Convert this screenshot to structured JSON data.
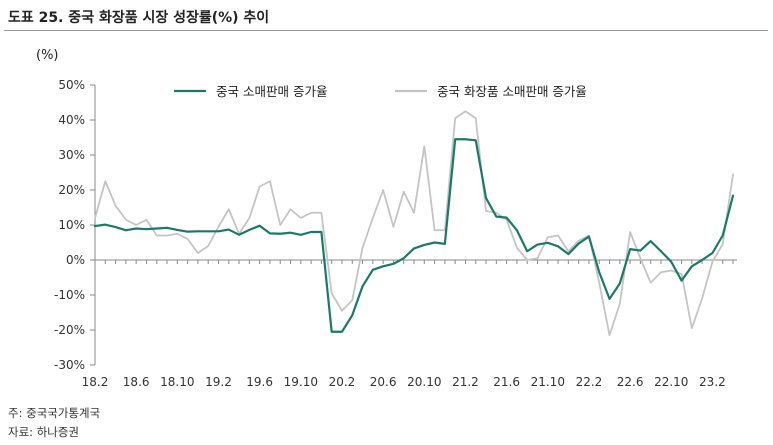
{
  "title": "도표 25. 중국 화장품 시장 성장률(%) 추이",
  "chart_data": {
    "type": "line",
    "y_unit": "(%)",
    "ylim": [
      -30,
      50
    ],
    "y_ticks": [
      "50%",
      "40%",
      "30%",
      "20%",
      "10%",
      "0%",
      "-10%",
      "-20%",
      "-30%"
    ],
    "y_tick_values": [
      50,
      40,
      30,
      20,
      10,
      0,
      -10,
      -20,
      -30
    ],
    "x_tick_labels": [
      "18.2",
      "18.6",
      "18.10",
      "19.2",
      "19.6",
      "19.10",
      "20.2",
      "20.6",
      "20.10",
      "21.2",
      "21.6",
      "21.10",
      "22.2",
      "22.6",
      "22.10",
      "23.2"
    ],
    "x": [
      "18.2",
      "18.3",
      "18.4",
      "18.5",
      "18.6",
      "18.7",
      "18.8",
      "18.9",
      "18.10",
      "18.11",
      "18.12",
      "19.1",
      "19.2",
      "19.3",
      "19.4",
      "19.5",
      "19.6",
      "19.7",
      "19.8",
      "19.9",
      "19.10",
      "19.11",
      "19.12",
      "20.1",
      "20.2",
      "20.3",
      "20.4",
      "20.5",
      "20.6",
      "20.7",
      "20.8",
      "20.9",
      "20.10",
      "20.11",
      "20.12",
      "21.1",
      "21.2",
      "21.3",
      "21.4",
      "21.5",
      "21.6",
      "21.7",
      "21.8",
      "21.9",
      "21.10",
      "21.11",
      "21.12",
      "22.1",
      "22.2",
      "22.3",
      "22.4",
      "22.5",
      "22.6",
      "22.7",
      "22.8",
      "22.9",
      "22.10",
      "22.11",
      "22.12",
      "23.1",
      "23.2",
      "23.3",
      "23.4"
    ],
    "legend_position": "top",
    "grid": false,
    "series": [
      {
        "name": "중국 소매판매 증가율",
        "color": "#1b7a66",
        "values": [
          9.7,
          10.1,
          9.4,
          8.5,
          9.0,
          8.8,
          9.0,
          9.2,
          8.6,
          8.1,
          8.2,
          8.2,
          8.2,
          8.7,
          7.2,
          8.6,
          9.8,
          7.6,
          7.5,
          7.8,
          7.2,
          8.0,
          8.0,
          -20.5,
          -20.5,
          -15.8,
          -7.5,
          -2.8,
          -1.8,
          -1.1,
          0.5,
          3.3,
          4.3,
          5.0,
          4.6,
          34.5,
          34.5,
          34.2,
          17.7,
          12.4,
          12.1,
          8.5,
          2.5,
          4.4,
          4.9,
          3.9,
          1.7,
          4.7,
          6.7,
          -3.5,
          -11.1,
          -6.7,
          3.1,
          2.7,
          5.4,
          2.5,
          -0.5,
          -5.9,
          -1.8,
          0.0,
          2.0,
          7.0,
          18.4
        ]
      },
      {
        "name": "중국 화장품 소매판매 증가율",
        "color": "#c4c4c4",
        "values": [
          12.0,
          22.5,
          15.5,
          11.5,
          10.0,
          11.5,
          7.0,
          7.0,
          7.5,
          6.0,
          2.0,
          4.0,
          9.5,
          14.5,
          7.5,
          12.0,
          21.0,
          22.5,
          10.0,
          14.5,
          12.0,
          13.5,
          13.5,
          -9.5,
          -14.5,
          -11.5,
          3.5,
          12.0,
          20.0,
          9.5,
          19.5,
          13.5,
          32.5,
          8.5,
          8.5,
          40.5,
          42.5,
          40.5,
          14.0,
          13.5,
          11.5,
          3.5,
          0.0,
          0.5,
          6.5,
          7.0,
          2.5,
          5.5,
          7.0,
          -6.5,
          -21.5,
          -12.5,
          8.0,
          0.5,
          -6.5,
          -3.5,
          -3.0,
          -4.0,
          -19.5,
          -11.0,
          -0.5,
          4.5,
          24.5
        ]
      }
    ]
  },
  "source": {
    "note": "주: 중국국가통계국",
    "credit": "자료: 하나증권"
  }
}
